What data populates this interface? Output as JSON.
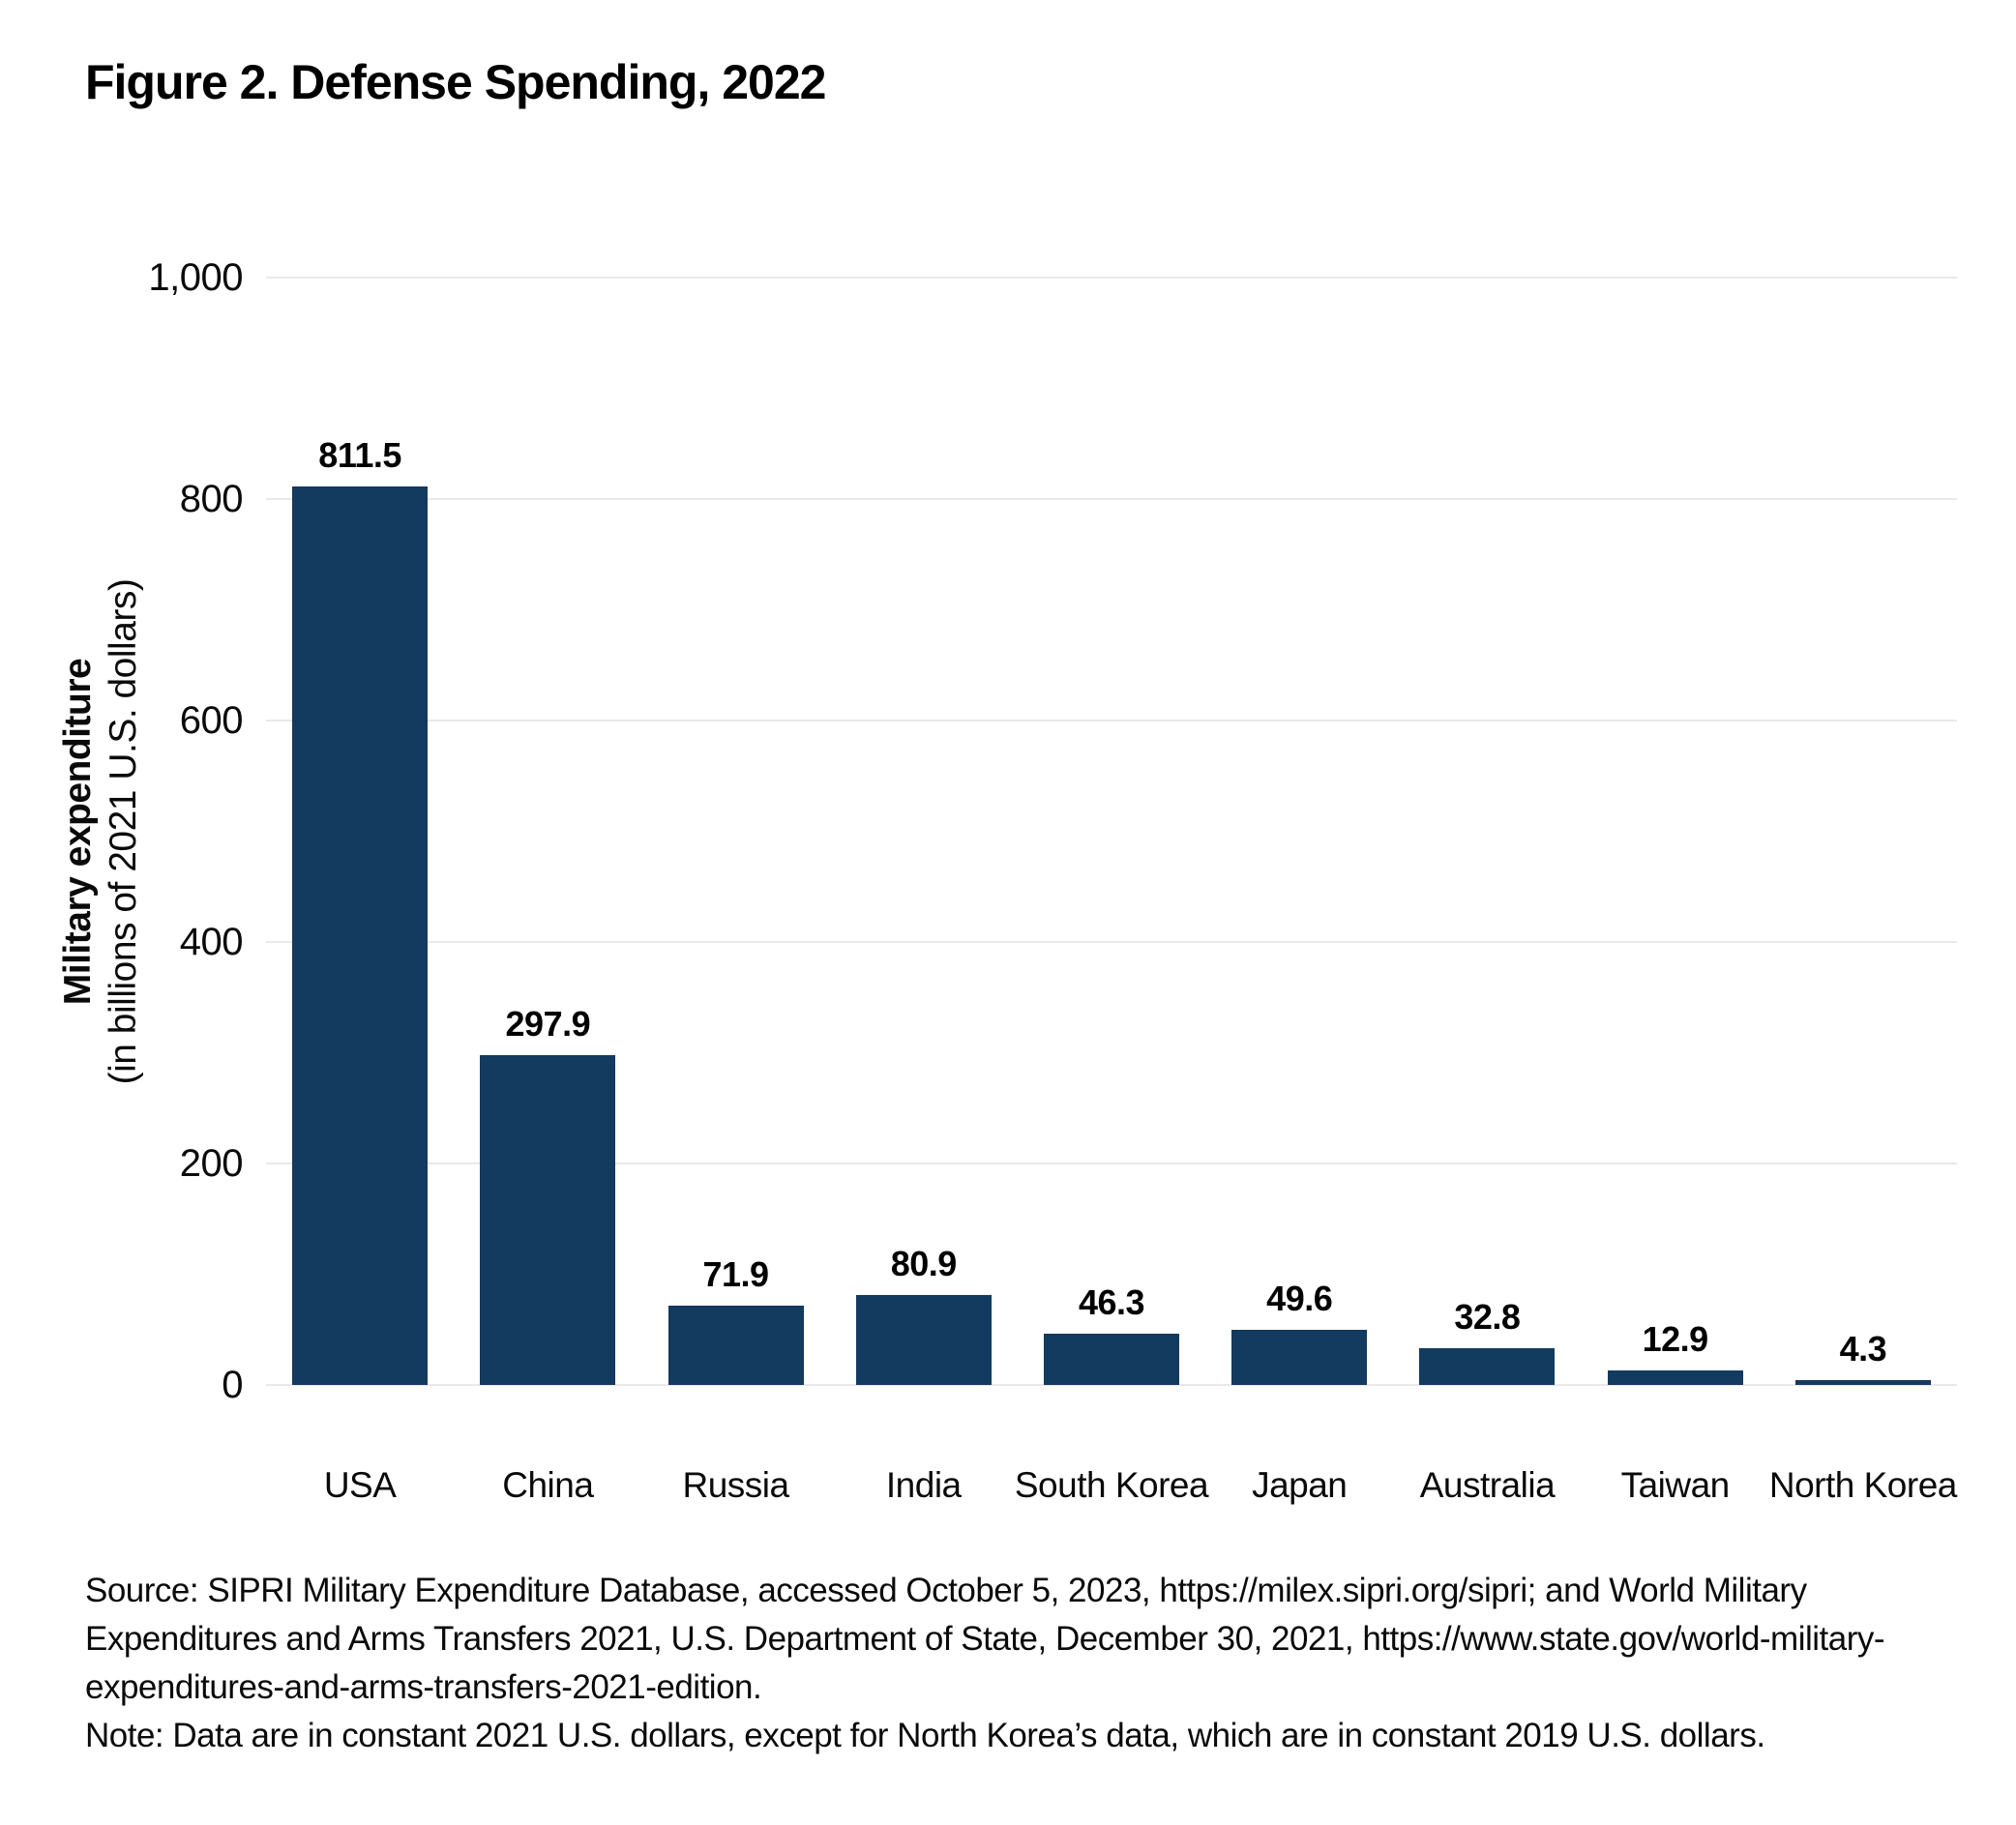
{
  "figure": {
    "title": "Figure 2. Defense Spending, 2022",
    "source": "Source: SIPRI Military Expenditure Database, accessed October 5, 2023, https://milex.sipri.org/sipri; and World Military Expenditures and Arms Transfers 2021, U.S. Department of State, December 30, 2021, https://www.state.gov/world-military-expenditures-and-arms-transfers-2021-edition.",
    "note": "Note: Data are in constant 2021 U.S. dollars, except for North Korea’s data, which are in constant 2019 U.S. dollars."
  },
  "chart_data": {
    "type": "bar",
    "title": "Figure 2. Defense Spending, 2022",
    "categories": [
      "USA",
      "China",
      "Russia",
      "India",
      "South Korea",
      "Japan",
      "Australia",
      "Taiwan",
      "North Korea"
    ],
    "values": [
      811.5,
      297.9,
      71.9,
      80.9,
      46.3,
      49.6,
      32.8,
      12.9,
      4.3
    ],
    "data_labels": [
      "811.5",
      "297.9",
      "71.9",
      "80.9",
      "46.3",
      "49.6",
      "32.8",
      "12.9",
      "4.3"
    ],
    "ylabel_bold": "Military expenditure",
    "ylabel_sub": "(in billions of 2021 U.S. dollars)",
    "xlabel": "",
    "ylim": [
      0,
      1000
    ],
    "yticks": [
      0,
      200,
      400,
      600,
      800,
      1000
    ],
    "ytick_labels": [
      "0",
      "200",
      "400",
      "600",
      "800",
      "1,000"
    ],
    "grid": "horizontal",
    "legend": "none",
    "bar_color": "#133a5f",
    "gridline_color": "#e9e9e9",
    "label_color": "#000000"
  }
}
